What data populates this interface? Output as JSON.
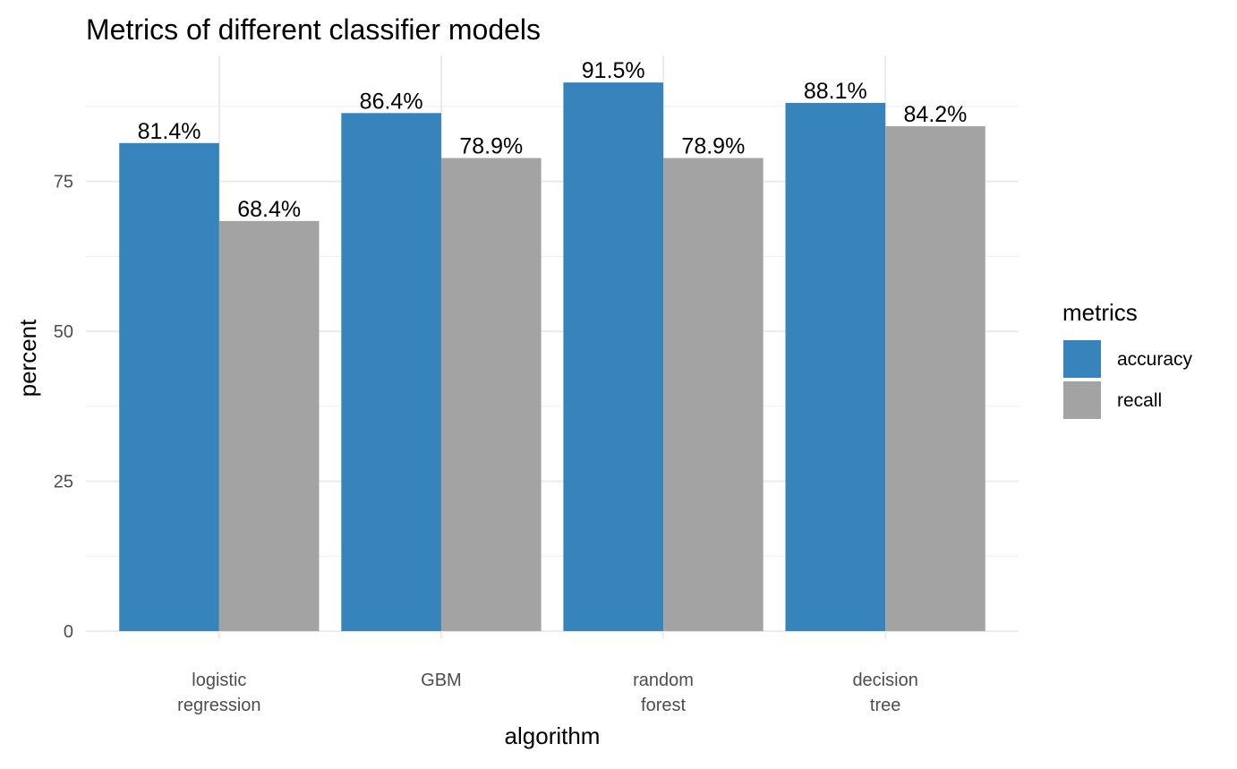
{
  "chart_data": {
    "type": "bar",
    "title": "Metrics of different classifier models",
    "xlabel": "algorithm",
    "ylabel": "percent",
    "categories": [
      [
        "logistic",
        "regression"
      ],
      [
        "GBM"
      ],
      [
        "random",
        "forest"
      ],
      [
        "decision",
        "tree"
      ]
    ],
    "series": [
      {
        "name": "accuracy",
        "values": [
          81.4,
          86.4,
          91.5,
          88.1
        ],
        "labels": [
          "81.4%",
          "86.4%",
          "91.5%",
          "88.1%"
        ],
        "color": "#3783BB"
      },
      {
        "name": "recall",
        "values": [
          68.4,
          78.9,
          78.9,
          84.2
        ],
        "labels": [
          "68.4%",
          "78.9%",
          "78.9%",
          "84.2%"
        ],
        "color": "#A3A3A3"
      }
    ],
    "yticks": [
      0,
      25,
      50,
      75
    ],
    "ylim": [
      -1.2,
      96
    ],
    "grid": true,
    "legend": {
      "title": "metrics",
      "position": "right"
    }
  }
}
